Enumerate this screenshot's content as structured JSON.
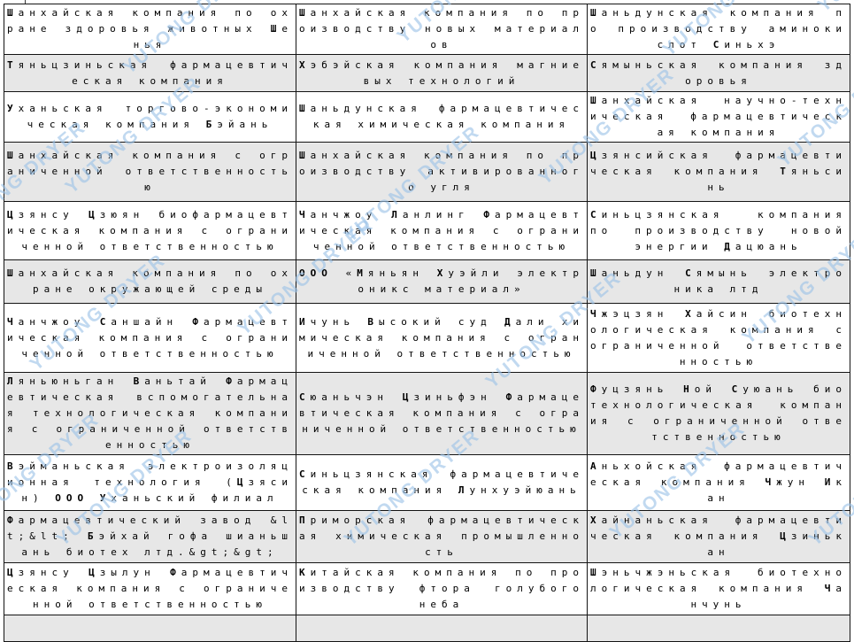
{
  "document": {
    "watermark_text": "YUTONG DRYER",
    "colors": {
      "row_alt_background": "#e7e7e7",
      "border": "#141414",
      "text": "#000000",
      "watermark": "#9cc3e8"
    }
  },
  "table": {
    "columns": 3,
    "rows": [
      {
        "cells": [
          "Шанхайская компания по охране здоровья животных Шенья",
          "Шанхайская компания по производству новых материалов",
          "Шаньдунская компания по производству аминокислот Синьхэ"
        ]
      },
      {
        "cells": [
          "Тяньцзиньская фармацевтическая компания",
          "Хэбэйская компания магниевых технологий",
          "Сямыньская компания здоровья"
        ]
      },
      {
        "cells": [
          "Уханьская торгово-экономическая компания Бэйань",
          "Шаньдунская фармацевтическая химическая компания",
          "Шанхайская научно-техническая фармацевтическая компания"
        ]
      },
      {
        "cells": [
          "Шанхайская компания с ограниченной ответственностью",
          "Шанхайская компания по производству активированного угля",
          "Цзянсийская фармацевтическая компания Тяньсинь"
        ]
      },
      {
        "cells": [
          "Цзянсу Цзюян биофармацевтическая компания с ограниченной ответственностью",
          "Чанчжоу Ланлинг Фармацевтическая компания с ограниченной ответственностью",
          "Синьцзянская компания по производству новой энергии Дацюань"
        ]
      },
      {
        "cells": [
          "Шанхайская компания по охране окружающей среды",
          "ООО «Мяньян Хуэйли электроникс материал»",
          "Шаньдун Сямынь электроника лтд"
        ]
      },
      {
        "cells": [
          "Чанчжоу Саншайн Фармацевтическая компания с ограниченной ответственностью",
          "Ичунь Высокий суд Дали химическая компания с ограниченной ответственностью",
          "Чжэцзян Хайсин биотехнологическая компания с ограниченной ответственностью"
        ]
      },
      {
        "cells": [
          "Ляньюньган Ваньтай Фармацевтическая вспомогательная технологическая компания с ограниченной ответственностью",
          "Сюаньчэн Цзиньфэн Фармацевтическая компания с ограниченной ответственностью",
          "Фуцзянь Ной Суюань биотехнологическая компания с ограниченной ответственностью"
        ]
      },
      {
        "cells": [
          "Вэйманьская электроизоляционная технология (Цзясин) ООО Уханьский филиал",
          "Синьцзянская фармацевтическая компания Лунхуэйюань",
          "Аньхойская фармацевтическая компания Чжун Икан"
        ]
      },
      {
        "cells": [
          "Фармацевтический завод &lt;&lt; Бэйхай гофа шианьшань биотех лтд.&gt;&gt;",
          "Приморская фармацевтическая химическая промышленность",
          "Хайнаньская фармацевтическая компания Цзинькан"
        ]
      },
      {
        "cells": [
          "Цзянсу Цзылун Фармацевтическая компания с ограниченной ответственностью",
          "Китайская компания по производству фтора голубого неба",
          "Шэньчжэньская биотехнологическая компания Чанчунь"
        ]
      },
      {
        "cells": [
          "",
          "",
          ""
        ]
      }
    ]
  }
}
